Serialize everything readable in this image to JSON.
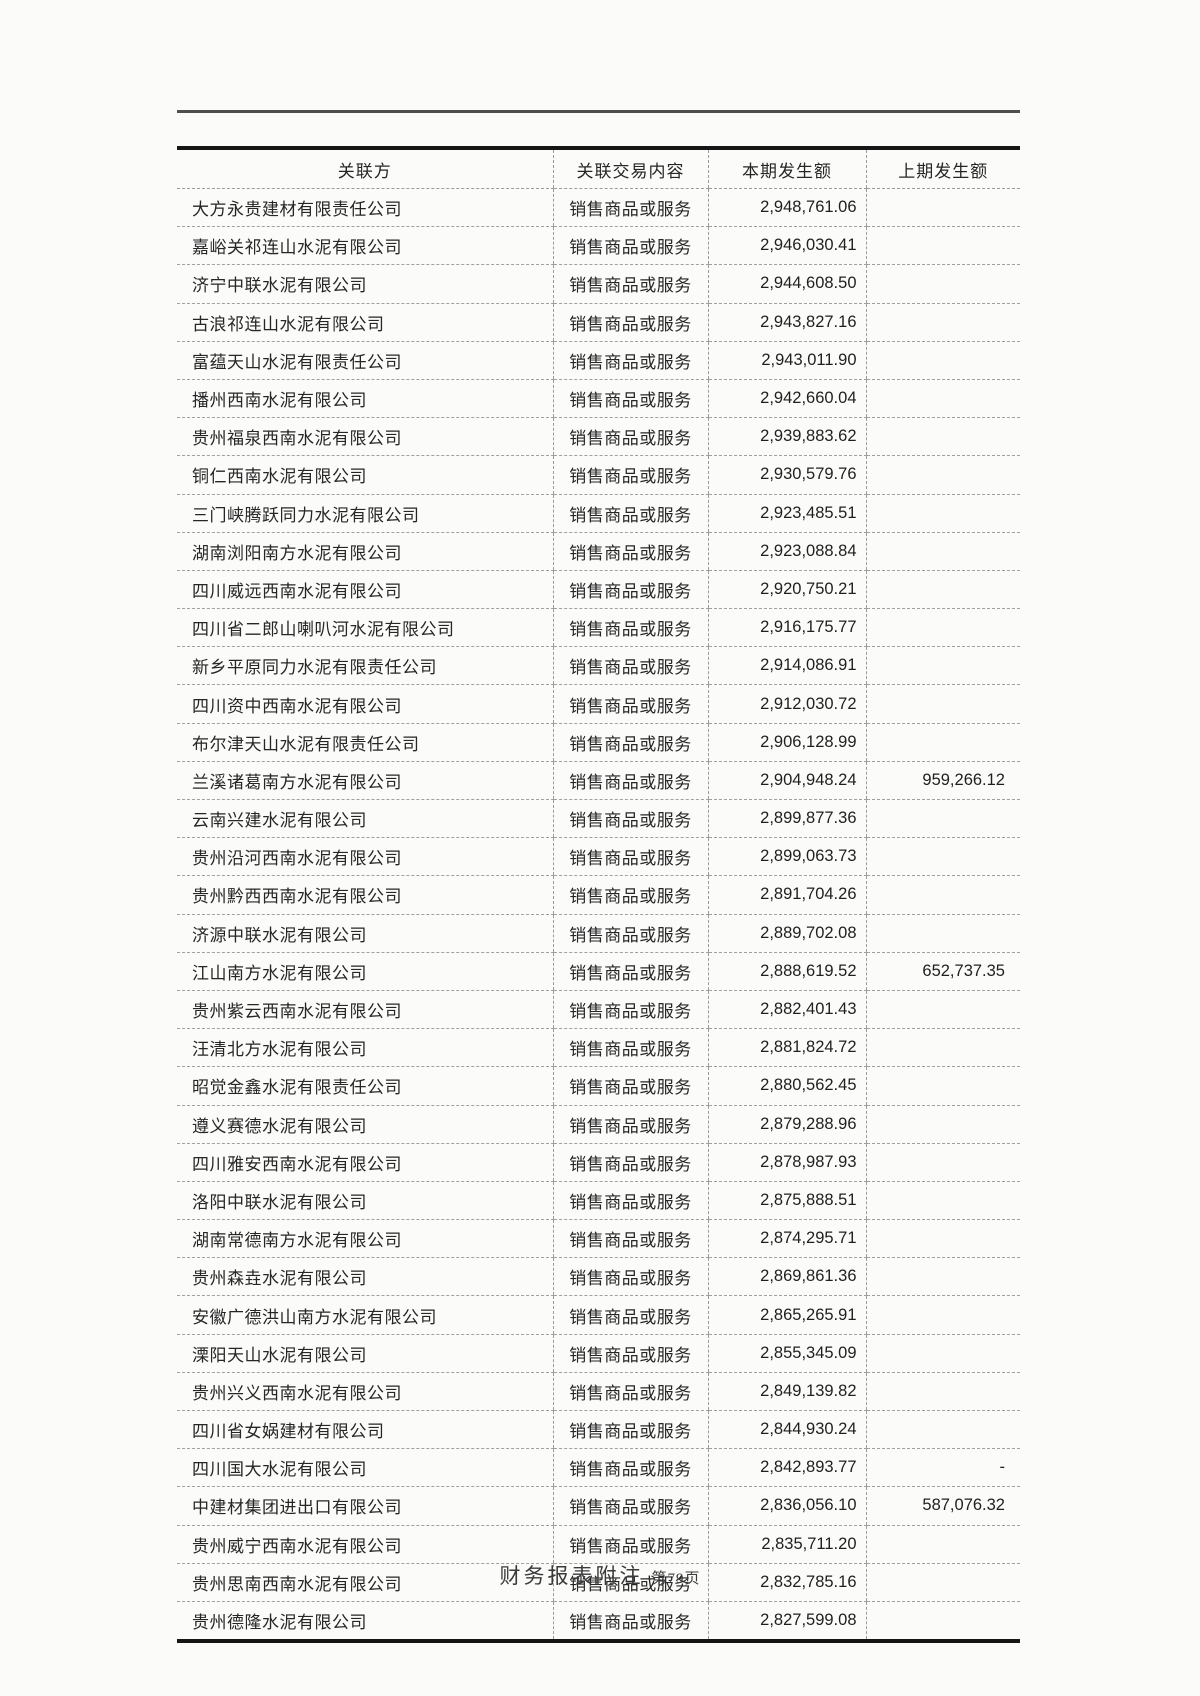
{
  "colors": {
    "background": "#fbfbfa",
    "text": "#262626",
    "border_strong": "#161616",
    "border_dashed": "#9b9b9b",
    "header_rule": "#4f4f4f"
  },
  "footer": {
    "title": "财务报表附注",
    "page_number": "第79页"
  },
  "table": {
    "columns": [
      "关联方",
      "关联交易内容",
      "本期发生额",
      "上期发生额"
    ],
    "rows": [
      [
        "大方永贵建材有限责任公司",
        "销售商品或服务",
        "2,948,761.06",
        ""
      ],
      [
        "嘉峪关祁连山水泥有限公司",
        "销售商品或服务",
        "2,946,030.41",
        ""
      ],
      [
        "济宁中联水泥有限公司",
        "销售商品或服务",
        "2,944,608.50",
        ""
      ],
      [
        "古浪祁连山水泥有限公司",
        "销售商品或服务",
        "2,943,827.16",
        ""
      ],
      [
        "富蕴天山水泥有限责任公司",
        "销售商品或服务",
        "2,943,011.90",
        ""
      ],
      [
        "播州西南水泥有限公司",
        "销售商品或服务",
        "2,942,660.04",
        ""
      ],
      [
        "贵州福泉西南水泥有限公司",
        "销售商品或服务",
        "2,939,883.62",
        ""
      ],
      [
        "铜仁西南水泥有限公司",
        "销售商品或服务",
        "2,930,579.76",
        ""
      ],
      [
        "三门峡腾跃同力水泥有限公司",
        "销售商品或服务",
        "2,923,485.51",
        ""
      ],
      [
        "湖南浏阳南方水泥有限公司",
        "销售商品或服务",
        "2,923,088.84",
        ""
      ],
      [
        "四川威远西南水泥有限公司",
        "销售商品或服务",
        "2,920,750.21",
        ""
      ],
      [
        "四川省二郎山喇叭河水泥有限公司",
        "销售商品或服务",
        "2,916,175.77",
        ""
      ],
      [
        "新乡平原同力水泥有限责任公司",
        "销售商品或服务",
        "2,914,086.91",
        ""
      ],
      [
        "四川资中西南水泥有限公司",
        "销售商品或服务",
        "2,912,030.72",
        ""
      ],
      [
        "布尔津天山水泥有限责任公司",
        "销售商品或服务",
        "2,906,128.99",
        ""
      ],
      [
        "兰溪诸葛南方水泥有限公司",
        "销售商品或服务",
        "2,904,948.24",
        "959,266.12"
      ],
      [
        "云南兴建水泥有限公司",
        "销售商品或服务",
        "2,899,877.36",
        ""
      ],
      [
        "贵州沿河西南水泥有限公司",
        "销售商品或服务",
        "2,899,063.73",
        ""
      ],
      [
        "贵州黔西西南水泥有限公司",
        "销售商品或服务",
        "2,891,704.26",
        ""
      ],
      [
        "济源中联水泥有限公司",
        "销售商品或服务",
        "2,889,702.08",
        ""
      ],
      [
        "江山南方水泥有限公司",
        "销售商品或服务",
        "2,888,619.52",
        "652,737.35"
      ],
      [
        "贵州紫云西南水泥有限公司",
        "销售商品或服务",
        "2,882,401.43",
        ""
      ],
      [
        "汪清北方水泥有限公司",
        "销售商品或服务",
        "2,881,824.72",
        ""
      ],
      [
        "昭觉金鑫水泥有限责任公司",
        "销售商品或服务",
        "2,880,562.45",
        ""
      ],
      [
        "遵义赛德水泥有限公司",
        "销售商品或服务",
        "2,879,288.96",
        ""
      ],
      [
        "四川雅安西南水泥有限公司",
        "销售商品或服务",
        "2,878,987.93",
        ""
      ],
      [
        "洛阳中联水泥有限公司",
        "销售商品或服务",
        "2,875,888.51",
        ""
      ],
      [
        "湖南常德南方水泥有限公司",
        "销售商品或服务",
        "2,874,295.71",
        ""
      ],
      [
        "贵州森垚水泥有限公司",
        "销售商品或服务",
        "2,869,861.36",
        ""
      ],
      [
        "安徽广德洪山南方水泥有限公司",
        "销售商品或服务",
        "2,865,265.91",
        ""
      ],
      [
        "溧阳天山水泥有限公司",
        "销售商品或服务",
        "2,855,345.09",
        ""
      ],
      [
        "贵州兴义西南水泥有限公司",
        "销售商品或服务",
        "2,849,139.82",
        ""
      ],
      [
        "四川省女娲建材有限公司",
        "销售商品或服务",
        "2,844,930.24",
        ""
      ],
      [
        "四川国大水泥有限公司",
        "销售商品或服务",
        "2,842,893.77",
        "-"
      ],
      [
        "中建材集团进出口有限公司",
        "销售商品或服务",
        "2,836,056.10",
        "587,076.32"
      ],
      [
        "贵州威宁西南水泥有限公司",
        "销售商品或服务",
        "2,835,711.20",
        ""
      ],
      [
        "贵州思南西南水泥有限公司",
        "销售商品或服务",
        "2,832,785.16",
        ""
      ],
      [
        "贵州德隆水泥有限公司",
        "销售商品或服务",
        "2,827,599.08",
        ""
      ]
    ]
  }
}
